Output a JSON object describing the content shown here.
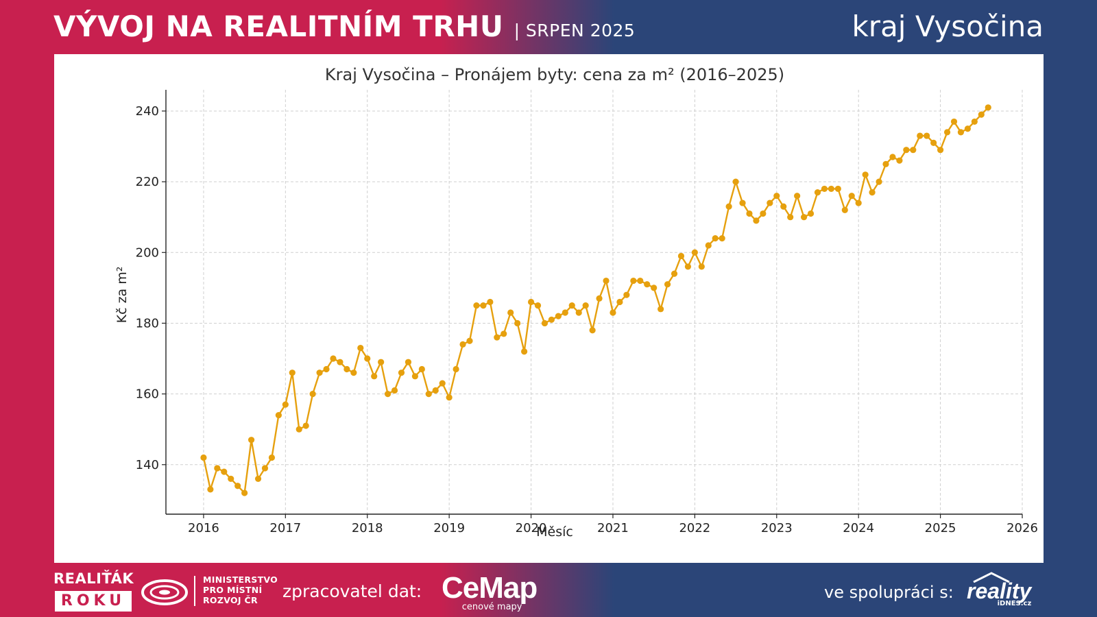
{
  "header": {
    "title": "VÝVOJ NA REALITNÍM TRHU",
    "subtitle": "| SRPEN 2025",
    "region": "kraj Vysočina"
  },
  "footer": {
    "realitak": "REALIŤÁK",
    "roku": "ROKU",
    "ministry_lines": [
      "MINISTERSTVO",
      "PRO MÍSTNÍ",
      "ROZVOJ ČR"
    ],
    "processor_label": "zpracovatel dat:",
    "cemap_name": "CeMap",
    "cemap_tagline": "cenové mapy",
    "cooperation_label": "ve spolupráci s:",
    "reality_name": "reality",
    "reality_sub": "iDNES.cz"
  },
  "colors": {
    "left_band": "#c8204f",
    "right_band": "#2b4578",
    "series": "#e6a00e"
  },
  "chart_data": {
    "type": "line",
    "title": "Kraj Vysočina – Pronájem byty: cena za m² (2016–2025)",
    "xlabel": "Měsíc",
    "ylabel": "Kč za m²",
    "xlim": [
      2015.54,
      2026.0
    ],
    "ylim": [
      126,
      246
    ],
    "x_ticks": [
      2016,
      2017,
      2018,
      2019,
      2020,
      2021,
      2022,
      2023,
      2024,
      2025,
      2026
    ],
    "y_ticks": [
      140,
      160,
      180,
      200,
      220,
      240
    ],
    "grid": true,
    "x_start": "2016-01",
    "frequency": "monthly",
    "values": [
      142,
      133,
      139,
      138,
      136,
      134,
      132,
      147,
      136,
      139,
      142,
      154,
      157,
      166,
      150,
      151,
      160,
      166,
      167,
      170,
      169,
      167,
      166,
      173,
      170,
      165,
      169,
      160,
      161,
      166,
      169,
      165,
      167,
      160,
      161,
      163,
      159,
      167,
      174,
      175,
      185,
      185,
      186,
      176,
      177,
      183,
      180,
      172,
      186,
      185,
      180,
      181,
      182,
      183,
      185,
      183,
      185,
      178,
      187,
      192,
      183,
      186,
      188,
      192,
      192,
      191,
      190,
      184,
      191,
      194,
      199,
      196,
      200,
      196,
      202,
      204,
      204,
      213,
      220,
      214,
      211,
      209,
      211,
      214,
      216,
      213,
      210,
      216,
      210,
      211,
      217,
      218,
      218,
      218,
      212,
      216,
      214,
      222,
      217,
      220,
      225,
      227,
      226,
      229,
      229,
      233,
      233,
      231,
      229,
      234,
      237,
      234,
      235,
      237,
      239,
      241
    ]
  }
}
